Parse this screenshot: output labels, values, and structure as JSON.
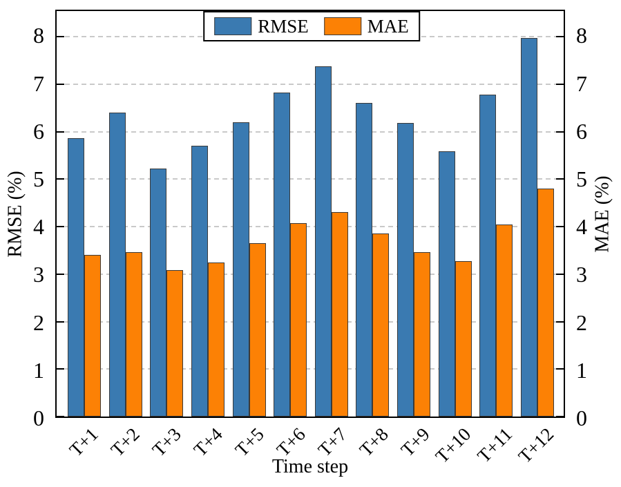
{
  "chart_data": {
    "type": "bar",
    "title": "",
    "categories": [
      "T+1",
      "T+2",
      "T+3",
      "T+4",
      "T+5",
      "T+6",
      "T+7",
      "T+8",
      "T+9",
      "T+10",
      "T+11",
      "T+12"
    ],
    "series": [
      {
        "name": "RMSE",
        "axis": "left",
        "color": "#3A7AB1",
        "edge_color": "#3a3a3a",
        "values": [
          5.86,
          6.4,
          5.23,
          5.7,
          6.2,
          6.82,
          7.38,
          6.61,
          6.18,
          5.59,
          6.78,
          7.97
        ]
      },
      {
        "name": "MAE",
        "axis": "right",
        "color": "#FC8105",
        "edge_color": "#3a3a3a",
        "values": [
          3.4,
          3.46,
          3.09,
          3.25,
          3.65,
          4.08,
          4.3,
          3.86,
          3.46,
          3.27,
          4.05,
          4.8
        ]
      }
    ],
    "xlabel": "Time step",
    "ylabel_left": "RMSE (%)",
    "ylabel_right": "MAE (%)",
    "ylim": [
      0,
      8.54
    ],
    "yticks": [
      0,
      1,
      2,
      3,
      4,
      5,
      6,
      7,
      8
    ],
    "grid": true,
    "grid_style": "dashed",
    "legend_position": "upper center",
    "colors": {
      "grid": "#c9c9c9",
      "frame": "#000000",
      "background": "#ffffff"
    }
  }
}
